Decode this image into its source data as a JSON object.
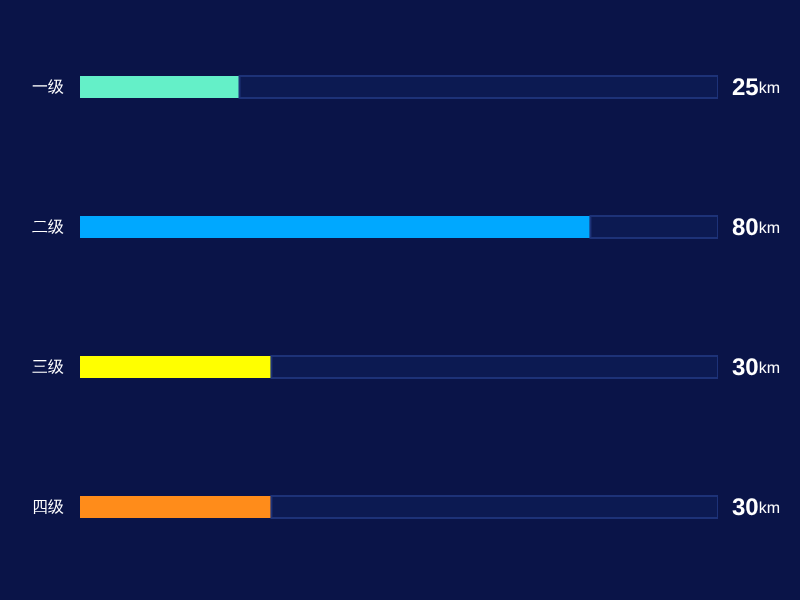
{
  "chart_data": {
    "type": "bar",
    "orientation": "horizontal",
    "stacked": true,
    "categories": [
      "一级",
      "二级",
      "三级",
      "四级"
    ],
    "series": [
      {
        "colors": [
          "#64f0c8",
          "#00a8ff",
          "#ffff00",
          "#ff8c1a"
        ],
        "values": [
          25,
          80,
          30,
          30
        ],
        "value_labels": [
          "25km",
          "80km",
          "30km",
          "30km"
        ]
      },
      {
        "color": "#0c1a52",
        "values": [
          75,
          20,
          70,
          70
        ]
      }
    ],
    "xlim": [
      0,
      100
    ]
  }
}
